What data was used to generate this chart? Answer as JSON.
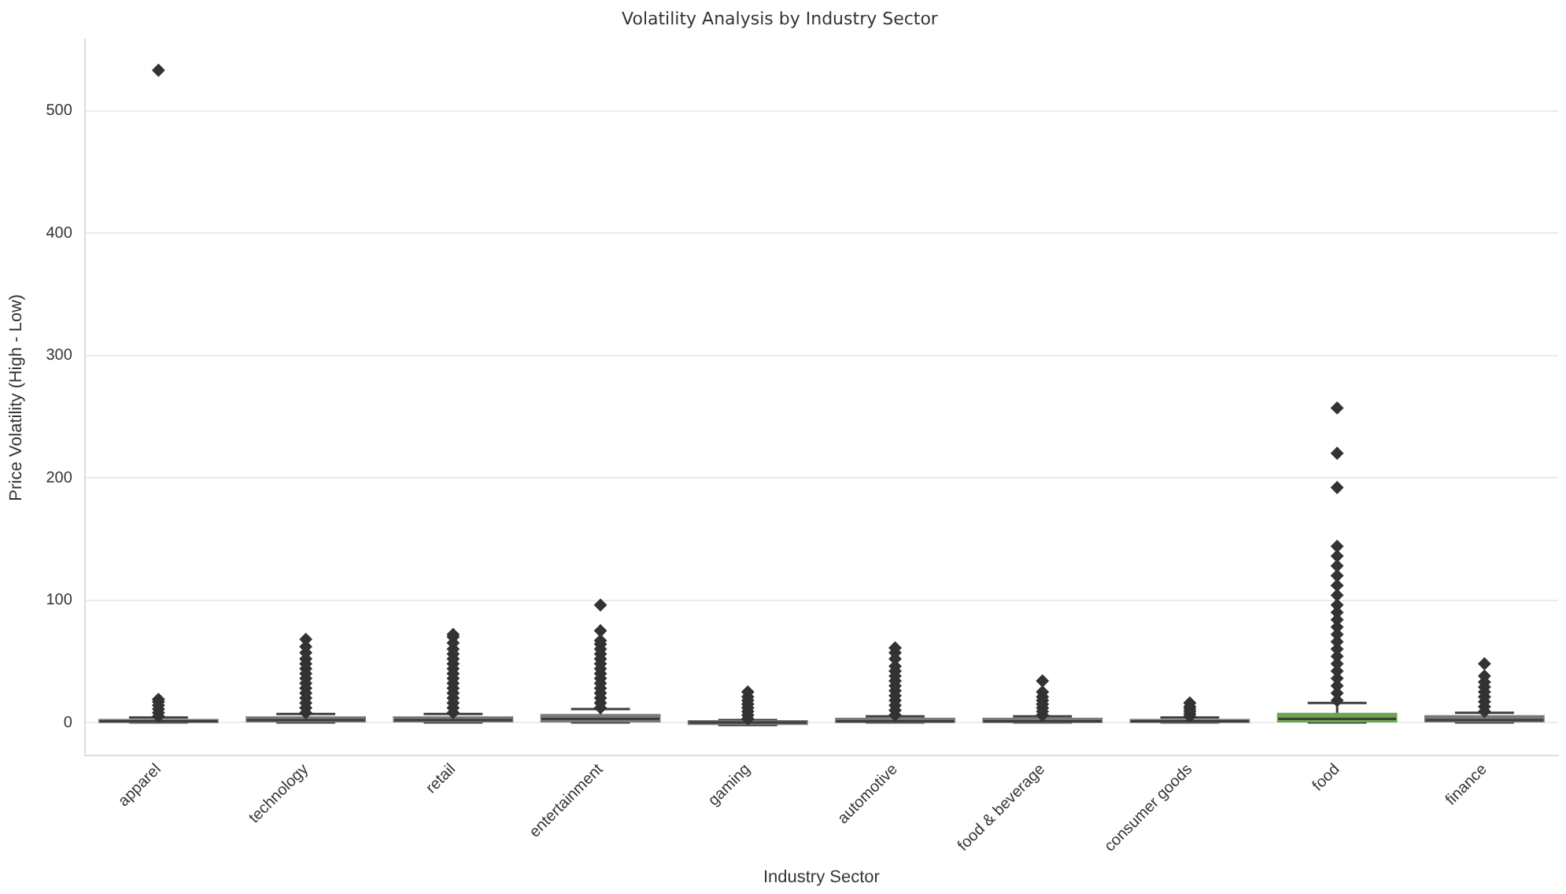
{
  "chart_data": {
    "type": "box",
    "title": "Volatility Analysis by Industry Sector",
    "xlabel": "Industry Sector",
    "ylabel": "Price Volatility (High - Low)",
    "categories": [
      "apparel",
      "technology",
      "retail",
      "entertainment",
      "gaming",
      "automotive",
      "food & beverage",
      "consumer goods",
      "food",
      "finance"
    ],
    "colors": [
      "#7a7a7a",
      "#7a7a7a",
      "#7a7a7a",
      "#7a7a7a",
      "#7a7a7a",
      "#7a7a7a",
      "#7a7a7a",
      "#7a7a7a",
      "#6aa84f",
      "#7a7a7a"
    ],
    "boxes": [
      {
        "low": 0,
        "q1": 0.5,
        "median": 1,
        "q3": 2,
        "high": 4,
        "outliers": [
          5,
          8,
          11,
          14,
          17,
          19,
          533
        ]
      },
      {
        "low": 0,
        "q1": 1,
        "median": 2,
        "q3": 4,
        "high": 7,
        "outliers": [
          8,
          12,
          16,
          20,
          24,
          28,
          32,
          36,
          40,
          44,
          48,
          52,
          57,
          62,
          68
        ]
      },
      {
        "low": 0,
        "q1": 1,
        "median": 2,
        "q3": 4,
        "high": 7,
        "outliers": [
          8,
          12,
          16,
          20,
          24,
          28,
          32,
          36,
          40,
          44,
          48,
          52,
          56,
          60,
          65,
          70,
          72
        ]
      },
      {
        "low": 0,
        "q1": 1,
        "median": 3,
        "q3": 6,
        "high": 11,
        "outliers": [
          12,
          16,
          20,
          24,
          28,
          32,
          36,
          40,
          44,
          48,
          52,
          56,
          60,
          64,
          67,
          75,
          96
        ]
      },
      {
        "low": -2,
        "q1": -1,
        "median": 0,
        "q3": 1,
        "high": 2,
        "outliers": [
          3,
          6,
          9,
          12,
          15,
          18,
          21,
          25
        ]
      },
      {
        "low": 0,
        "q1": 0.5,
        "median": 1,
        "q3": 3,
        "high": 5,
        "outliers": [
          6,
          10,
          14,
          18,
          22,
          26,
          30,
          34,
          38,
          42,
          46,
          52,
          57,
          61
        ]
      },
      {
        "low": 0,
        "q1": 0.5,
        "median": 1,
        "q3": 3,
        "high": 5,
        "outliers": [
          6,
          9,
          12,
          15,
          18,
          21,
          25,
          34
        ]
      },
      {
        "low": 0,
        "q1": 0.5,
        "median": 1,
        "q3": 2,
        "high": 4,
        "outliers": [
          5,
          7,
          9,
          11,
          13,
          16
        ]
      },
      {
        "low": 0,
        "q1": 1,
        "median": 3,
        "q3": 7,
        "high": 16,
        "outliers": [
          18,
          24,
          30,
          36,
          42,
          48,
          54,
          60,
          66,
          72,
          78,
          84,
          90,
          96,
          104,
          112,
          120,
          128,
          136,
          144,
          192,
          220,
          257
        ]
      },
      {
        "low": 0,
        "q1": 1,
        "median": 2,
        "q3": 5,
        "high": 8,
        "outliers": [
          9,
          13,
          17,
          21,
          25,
          29,
          33,
          38,
          48
        ]
      }
    ],
    "ylim": [
      -27,
      558
    ],
    "yticks": [
      0,
      100,
      200,
      300,
      400,
      500
    ],
    "grid": "y",
    "legend": false,
    "marker": "diamond"
  }
}
